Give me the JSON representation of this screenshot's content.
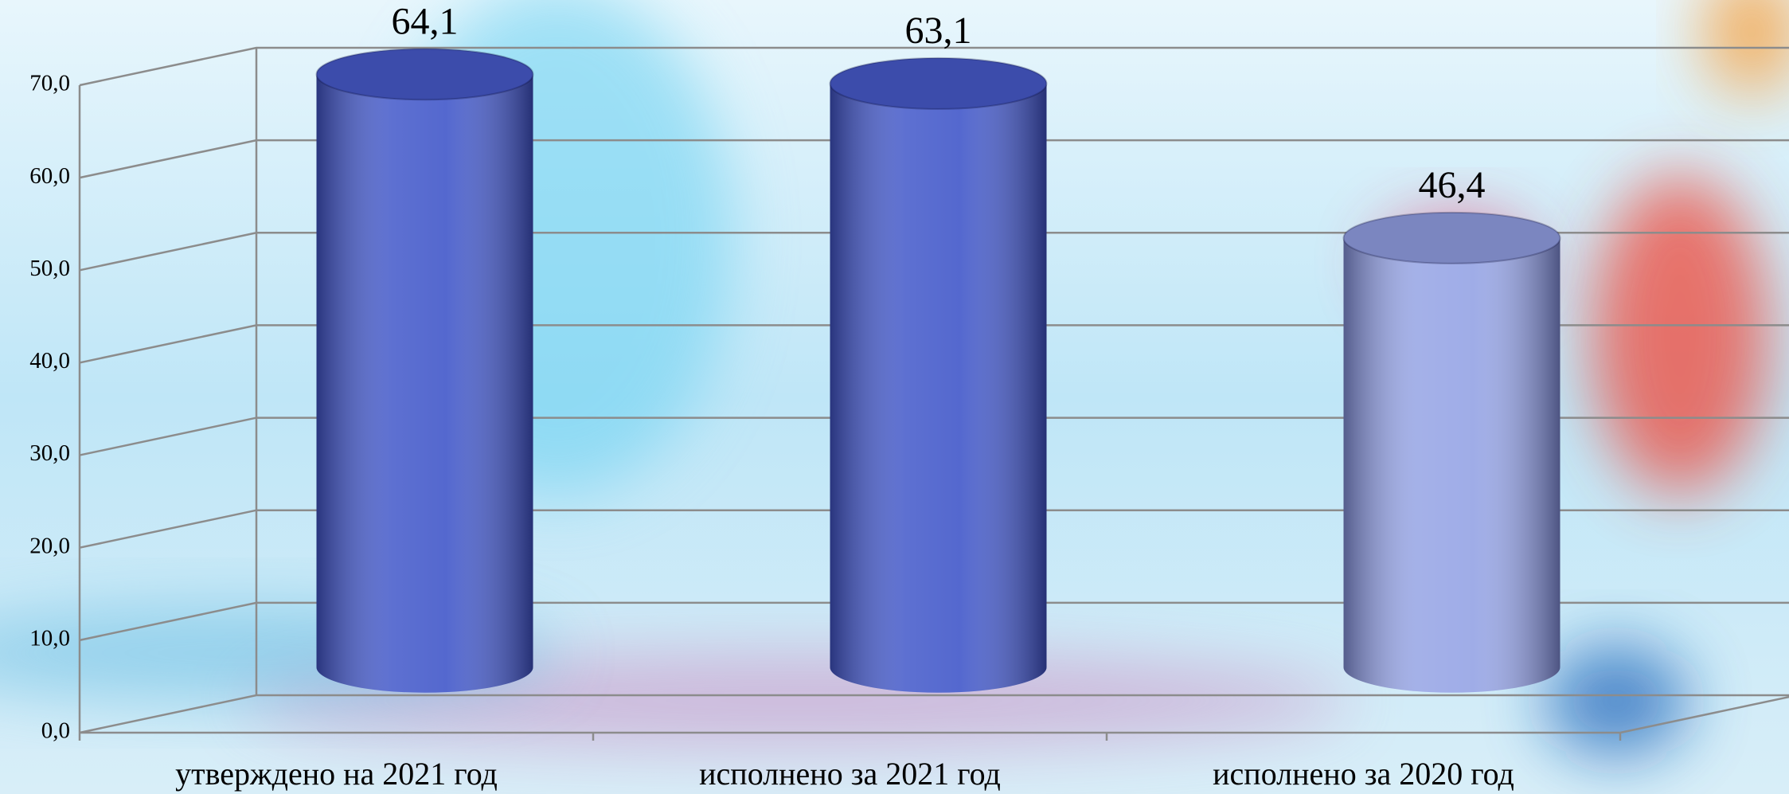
{
  "chart_data": {
    "type": "bar3d-cylinder",
    "categories": [
      "утверждено на 2021 год",
      "исполнено за 2021 год",
      "исполнено за 2020 год"
    ],
    "values": [
      64.1,
      63.1,
      46.4
    ],
    "value_labels": [
      "64,1",
      "63,1",
      "46,4"
    ],
    "colors": [
      "#4b60cc",
      "#4b60cc",
      "#9aa8e6"
    ],
    "ylim": [
      0,
      70
    ],
    "yticks": [
      {
        "value": 0,
        "label": "0,0"
      },
      {
        "value": 10,
        "label": "10,0"
      },
      {
        "value": 20,
        "label": "20,0"
      },
      {
        "value": 30,
        "label": "30,0"
      },
      {
        "value": 40,
        "label": "40,0"
      },
      {
        "value": 50,
        "label": "50,0"
      },
      {
        "value": 60,
        "label": "60,0"
      },
      {
        "value": 70,
        "label": "70,0"
      }
    ],
    "grid": true
  }
}
